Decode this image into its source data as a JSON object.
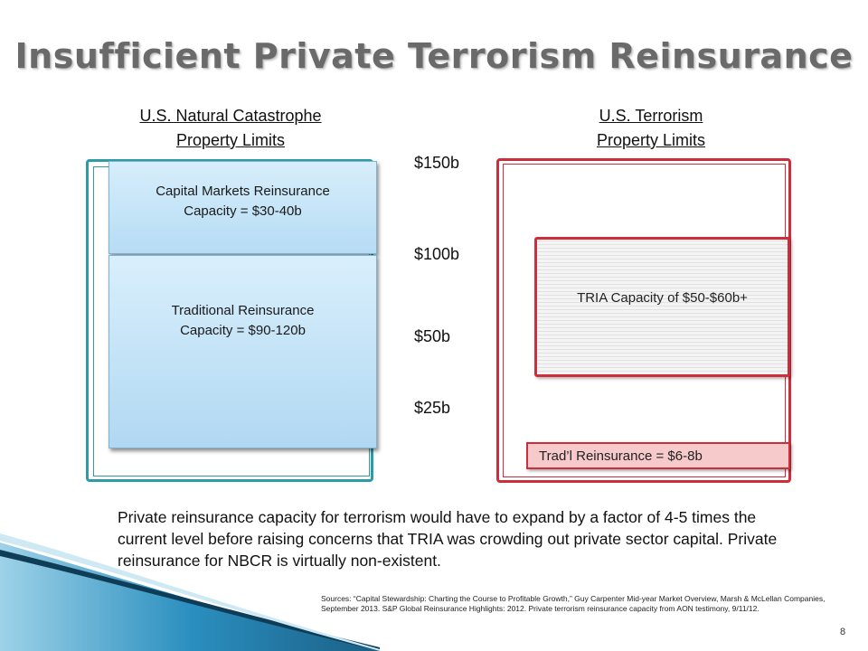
{
  "title": "Insufficient Private Terrorism Reinsurance",
  "left_header": {
    "line1": "U.S. Natural Catastrophe",
    "line2": "Property Limits"
  },
  "right_header": {
    "line1": "U.S. Terrorism",
    "line2": "Property Limits"
  },
  "left_stack": {
    "capital_markets": {
      "line1": "Capital Markets Reinsurance",
      "line2": "Capacity = $30-40b"
    },
    "traditional": {
      "line1": "Traditional Reinsurance",
      "line2": "Capacity = $90-120b"
    }
  },
  "scale_labels": [
    "$150b",
    "$100b",
    "$50b",
    "$25b"
  ],
  "right_stack": {
    "tria": "TRIA Capacity of $50-$60b+",
    "tradl": "Trad’l Reinsurance = $6-8b"
  },
  "body_text": "Private reinsurance capacity for terrorism would have to expand by a factor of 4-5 times the current level before raising concerns that TRIA was crowding out private sector capital. Private reinsurance for NBCR is virtually non-existent.",
  "sources": "Sources: “Capital Stewardship: Charting the Course to Profitable Growth,” Guy Carpenter Mid-year Market Overview, Marsh & McLellan Companies, September 2013. S&P Global Reinsurance Highlights: 2012. Private terrorism reinsurance capacity from AON testimony, 9/11/12.",
  "page_number": "8",
  "colors": {
    "teal": "#2e9ba5",
    "red": "#cc2e3b",
    "blue_fill": "#c6e5f8",
    "pink_fill": "#f6c9cb",
    "swoosh": "#1f7fa8"
  }
}
